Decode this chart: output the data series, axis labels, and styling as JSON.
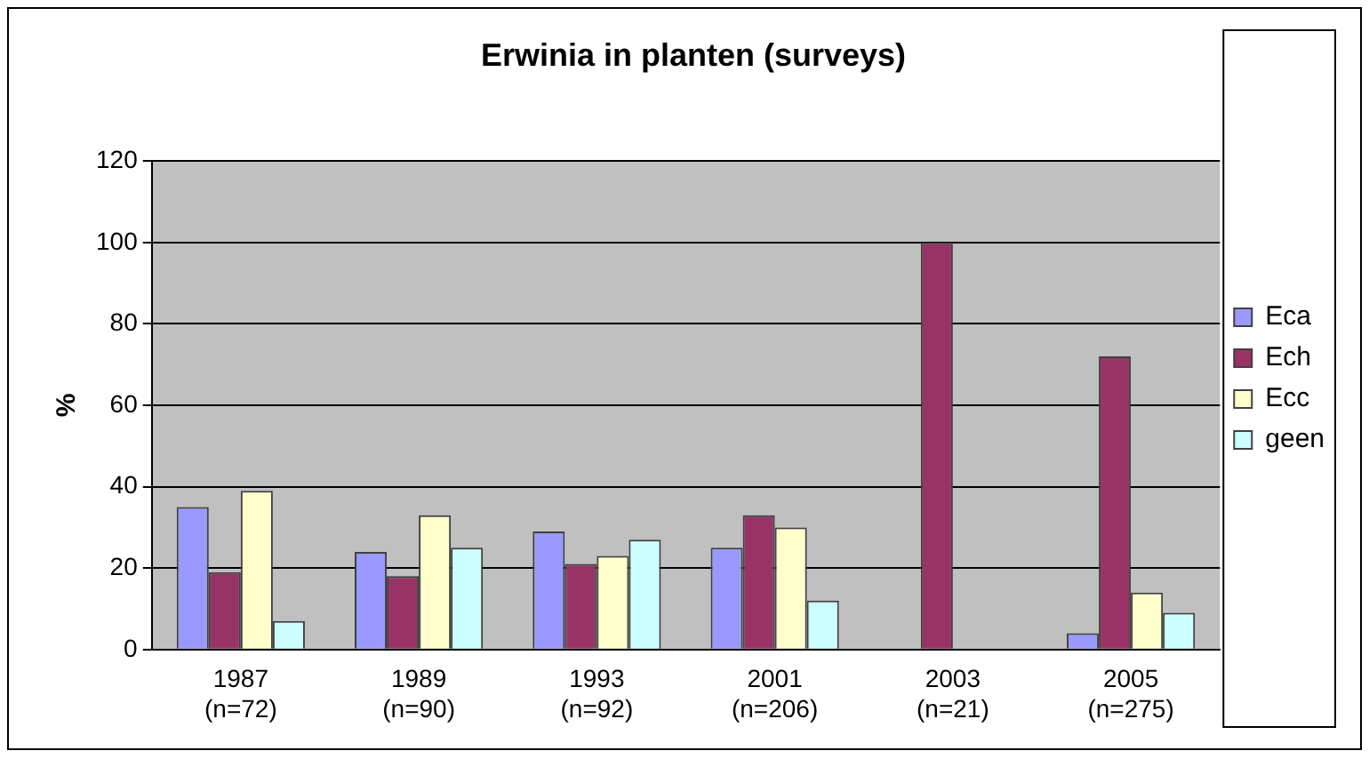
{
  "chart_data": {
    "type": "bar",
    "title": "Erwinia in planten (surveys)",
    "ylabel": "%",
    "categories": [
      "1987\n(n=72)",
      "1989\n(n=90)",
      "1993\n(n=92)",
      "2001\n(n=206)",
      "2003\n(n=21)",
      "2005\n(n=275)"
    ],
    "series": [
      {
        "name": "Eca",
        "color": "#9999ff",
        "values": [
          35,
          24,
          29,
          25,
          null,
          4
        ]
      },
      {
        "name": "Ech",
        "color": "#993366",
        "values": [
          19,
          18,
          21,
          33,
          100,
          72
        ]
      },
      {
        "name": "Ecc",
        "color": "#ffffcc",
        "values": [
          39,
          33,
          23,
          30,
          null,
          14
        ]
      },
      {
        "name": "geen",
        "color": "#ccffff",
        "values": [
          7,
          25,
          27,
          12,
          null,
          9
        ]
      }
    ],
    "ylim": [
      0,
      120
    ],
    "yticks": [
      0,
      20,
      40,
      60,
      80,
      100,
      120
    ],
    "grid": "y",
    "legend": "right"
  }
}
